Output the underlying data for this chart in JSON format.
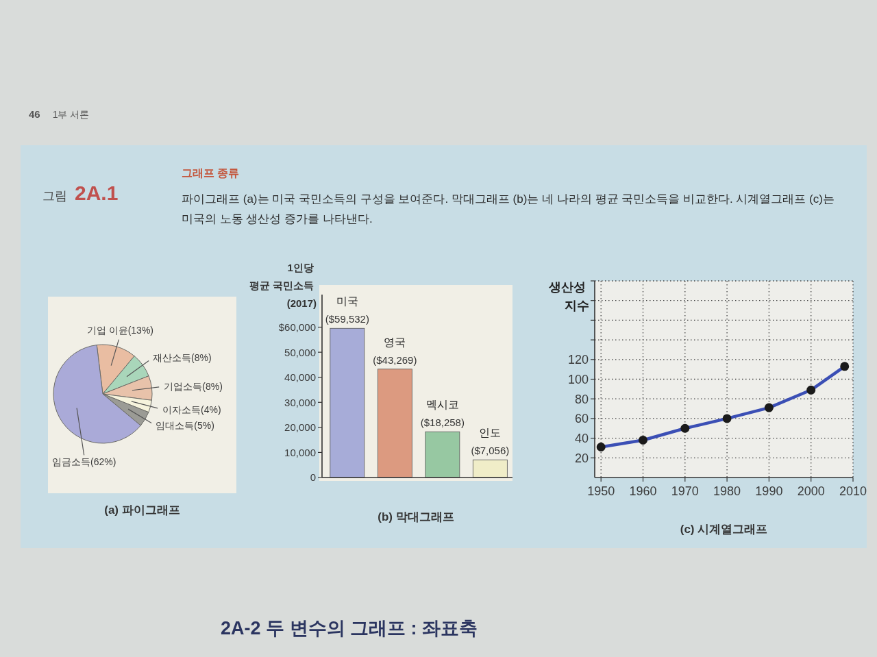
{
  "chart_data": [
    {
      "type": "other",
      "title": "그래프 종류",
      "subtitle": "파이그래프 (a)는 미국 국민소득의 구성을 보여준다. 막대그래프 (b)는 네 나라의 평균 국민소득을 비교한다. 시계열그래프 (c)는 미국의 노동 생산성 증가를 나타낸다.",
      "annotations": [
        "46",
        "1부 서론",
        "그림 2A.1"
      ]
    },
    {
      "type": "pie",
      "title": "(a) 파이그래프",
      "categories": [
        "기업 이윤",
        "재산소득",
        "기업소득",
        "이자소득",
        "임대소득",
        "임금소득"
      ],
      "values": [
        13,
        8,
        8,
        4,
        5,
        62
      ],
      "value_labels": [
        "(13%)",
        "(8%)",
        "(8%)",
        "(4%)",
        "(5%)",
        "(62%)"
      ],
      "colors": [
        "#e9bda2",
        "#a9d6ba",
        "#e8c2aa",
        "#f6f3dc",
        "#9b9b95",
        "#aaaad8"
      ]
    },
    {
      "type": "bar",
      "title": "(b) 막대그래프",
      "ylabel": "1인당\n평균 국민소득\n(2017)",
      "categories": [
        "미국",
        "영국",
        "멕시코",
        "인도"
      ],
      "values": [
        59532,
        43269,
        18258,
        7056
      ],
      "value_labels": [
        "($59,532)",
        "($43,269)",
        "($18,258)",
        "($7,056)"
      ],
      "colors": [
        "#a7acd8",
        "#dc9a80",
        "#97c8a2",
        "#f0edc8"
      ],
      "ylim": [
        0,
        73000
      ],
      "yticks": [
        0,
        {
          "value": 10000,
          "label": "10,000"
        },
        {
          "value": 20000,
          "label": "20,000"
        },
        {
          "value": 30000,
          "label": "30,000"
        },
        {
          "value": 40000,
          "label": "40,000"
        },
        {
          "value": 50000,
          "label": "50,000"
        },
        {
          "value": 60000,
          "label": "$60,000"
        }
      ]
    },
    {
      "type": "line",
      "title": "(c) 시계열그래프",
      "ylabel": "생산성\n지수",
      "x": [
        1950,
        1960,
        1970,
        1980,
        1990,
        2000,
        2008
      ],
      "series": [
        {
          "color": "#3b4fb5",
          "colors": [
            "#1a1a1a",
            "#1a1a1a",
            "#1a1a1a",
            "#1a1a1a",
            "#1a1a1a",
            "#1a1a1a",
            "#1a1a1a"
          ],
          "values": [
            31,
            38,
            50,
            60,
            71,
            89,
            113
          ]
        }
      ],
      "xlim": [
        1948.5,
        2010
      ],
      "xticks": [
        1950,
        1960,
        1970,
        1980,
        1990,
        2000,
        2010
      ],
      "ylim": [
        0,
        200
      ],
      "yticks": [
        20,
        40,
        60,
        80,
        100,
        120,
        {
          "value": 140,
          "label": null
        },
        {
          "value": 160,
          "label": null
        },
        {
          "value": 180,
          "label": null
        },
        {
          "value": 200,
          "label": null
        }
      ],
      "grid": true,
      "marker": "circle"
    },
    {
      "type": "other",
      "title": "2A-2 두 변수의 그래프 : 좌표축"
    }
  ]
}
